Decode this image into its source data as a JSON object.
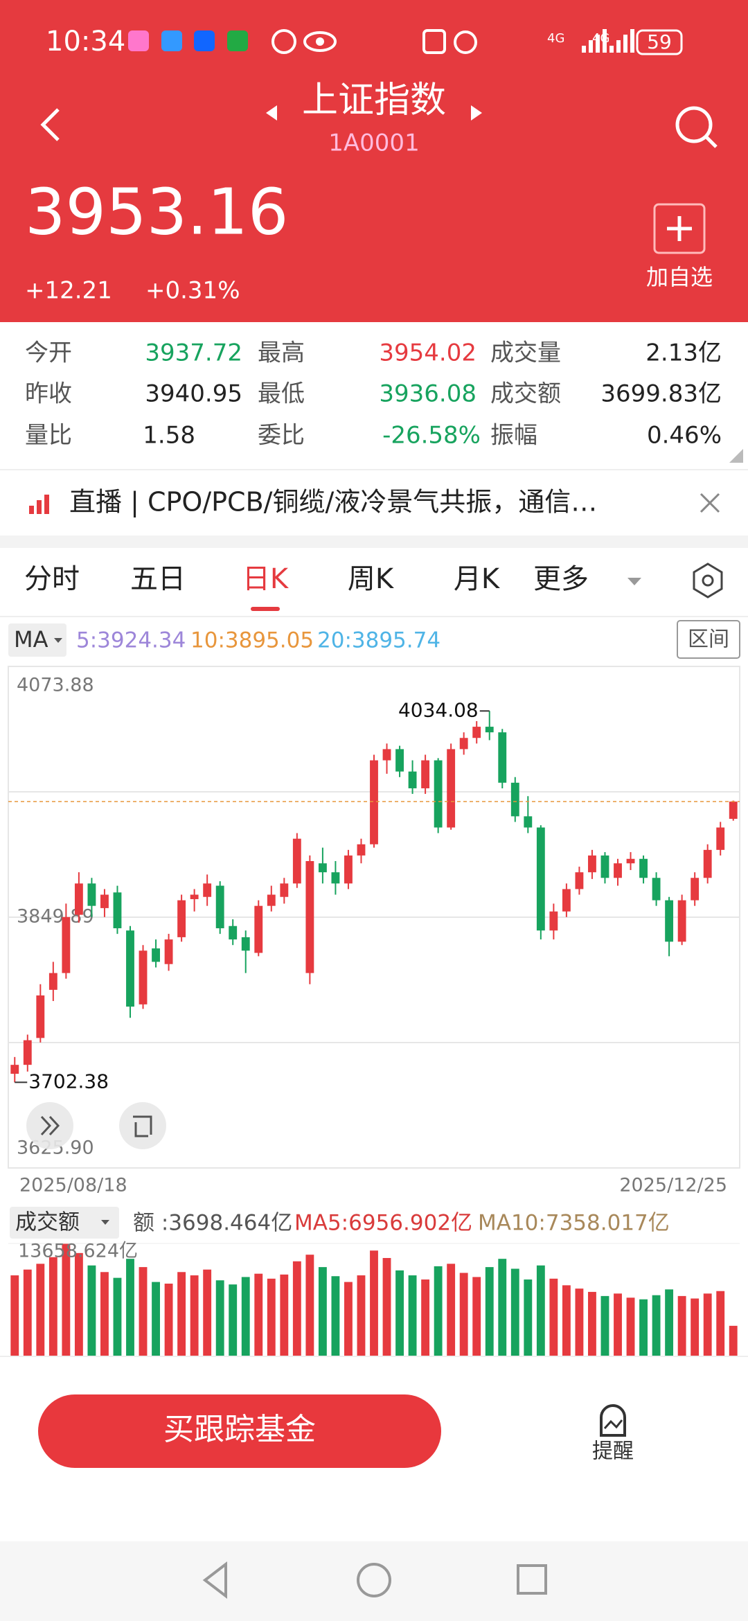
{
  "status_bar": {
    "time": "10:34",
    "battery": "59",
    "network": [
      "4G",
      "4G"
    ]
  },
  "header": {
    "title": "上证指数",
    "code": "1A0001",
    "price": "3953.16",
    "change": "+12.21",
    "change_pct": "+0.31%",
    "add_label": "加自选"
  },
  "stats": [
    [
      "今开",
      "3937.72",
      "最高",
      "3954.02",
      "成交量",
      "2.13亿"
    ],
    [
      "昨收",
      "3940.95",
      "最低",
      "3936.08",
      "成交额",
      "3699.83亿"
    ],
    [
      "量比",
      "1.58",
      "委比",
      "-26.58%",
      "振幅",
      "0.46%"
    ]
  ],
  "news": "直播 | CPO/PCB/铜缆/液冷景气共振，通信…",
  "tabs": [
    "分时",
    "五日",
    "日K",
    "周K",
    "月K",
    "更多"
  ],
  "chart": {
    "type": "candlestick",
    "indicator": "MA",
    "ma_labels": [
      "5:3924.34",
      "10:3895.05",
      "20:3895.74"
    ],
    "ma_colors": [
      "#9d86d9",
      "#e8963c",
      "#4fb4e6"
    ],
    "range_button": "区间",
    "ylim": [
      3625.9,
      4073.88
    ],
    "yticks": [
      {
        "value": 3625.9,
        "label": "3625.90"
      },
      3849.89,
      4073.88
    ],
    "start_date": "2025/08/18",
    "end_date": "2025/12/25",
    "up_color": "#e63a3f",
    "down_color": "#17a35e",
    "candles": [
      [
        3710,
        3725,
        3702.38,
        3718
      ],
      [
        3718,
        3745,
        3712,
        3740
      ],
      [
        3742,
        3790,
        3738,
        3780
      ],
      [
        3785,
        3810,
        3775,
        3800
      ],
      [
        3800,
        3862,
        3795,
        3850
      ],
      [
        3852,
        3890,
        3845,
        3880
      ],
      [
        3880,
        3885,
        3850,
        3860
      ],
      [
        3858,
        3875,
        3850,
        3870
      ],
      [
        3872,
        3878,
        3835,
        3840
      ],
      [
        3838,
        3842,
        3760,
        3770
      ],
      [
        3772,
        3825,
        3768,
        3820
      ],
      [
        3822,
        3830,
        3805,
        3810
      ],
      [
        3808,
        3835,
        3802,
        3830
      ],
      [
        3832,
        3870,
        3828,
        3865
      ],
      [
        3866,
        3875,
        3855,
        3870
      ],
      [
        3868,
        3888,
        3860,
        3880
      ],
      [
        3878,
        3882,
        3835,
        3840
      ],
      [
        3842,
        3848,
        3825,
        3830
      ],
      [
        3832,
        3838,
        3800,
        3820
      ],
      [
        3818,
        3865,
        3815,
        3860
      ],
      [
        3860,
        3878,
        3855,
        3870
      ],
      [
        3868,
        3885,
        3862,
        3880
      ],
      [
        3880,
        3925,
        3876,
        3920
      ],
      [
        3800,
        3905,
        3790,
        3900
      ],
      [
        3898,
        3912,
        3880,
        3890
      ],
      [
        3890,
        3900,
        3870,
        3880
      ],
      [
        3880,
        3910,
        3875,
        3905
      ],
      [
        3905,
        3920,
        3898,
        3915
      ],
      [
        3915,
        3995,
        3912,
        3990
      ],
      [
        3990,
        4005,
        3978,
        4000
      ],
      [
        4000,
        4003,
        3975,
        3980
      ],
      [
        3980,
        3990,
        3960,
        3965
      ],
      [
        3965,
        3995,
        3960,
        3990
      ],
      [
        3990,
        3992,
        3925,
        3930
      ],
      [
        3930,
        4005,
        3928,
        4000
      ],
      [
        4000,
        4015,
        3995,
        4010
      ],
      [
        4010,
        4025,
        4005,
        4020
      ],
      [
        4020,
        4034.08,
        4008,
        4015
      ],
      [
        4015,
        4018,
        3965,
        3970
      ],
      [
        3970,
        3975,
        3935,
        3940
      ],
      [
        3940,
        3958,
        3925,
        3930
      ],
      [
        3930,
        3932,
        3830,
        3838
      ],
      [
        3838,
        3862,
        3830,
        3855
      ],
      [
        3855,
        3880,
        3850,
        3875
      ],
      [
        3875,
        3895,
        3870,
        3890
      ],
      [
        3890,
        3910,
        3884,
        3905
      ],
      [
        3905,
        3908,
        3880,
        3885
      ],
      [
        3885,
        3902,
        3878,
        3898
      ],
      [
        3898,
        3908,
        3892,
        3902
      ],
      [
        3902,
        3905,
        3880,
        3885
      ],
      [
        3885,
        3890,
        3860,
        3865
      ],
      [
        3865,
        3868,
        3815,
        3828
      ],
      [
        3828,
        3870,
        3825,
        3865
      ],
      [
        3865,
        3890,
        3860,
        3885
      ],
      [
        3885,
        3915,
        3880,
        3910
      ],
      [
        3910,
        3935,
        3905,
        3930
      ],
      [
        3937.72,
        3954.02,
        3936.08,
        3953.16
      ]
    ]
  },
  "volume": {
    "selector": "成交额",
    "labels": [
      "额 :3698.464亿",
      "MA5:6956.902亿",
      "MA10:7358.017亿"
    ],
    "label_colors": [
      "#555555",
      "#d93b3b",
      "#a8885a"
    ],
    "ylim": [
      0,
      13658.624
    ],
    "max_tick": {
      "value": 13658.624,
      "label": "13658.624亿"
    },
    "values": [
      9800,
      10500,
      11200,
      12000,
      13658.624,
      12500,
      11000,
      10200,
      9500,
      11800,
      10800,
      9000,
      8800,
      10200,
      9800,
      10500,
      9200,
      8700,
      9600,
      10000,
      9400,
      9900,
      11500,
      12300,
      10800,
      9700,
      9000,
      9800,
      12800,
      11900,
      10400,
      9800,
      9300,
      10900,
      11200,
      10100,
      9600,
      10800,
      11800,
      10600,
      9300,
      11000,
      9400,
      8600,
      8200,
      7800,
      7300,
      7600,
      7100,
      6900,
      7400,
      8100,
      7300,
      7000,
      7600,
      7900,
      3698.464
    ]
  },
  "footer": {
    "buy_button": "买跟踪基金",
    "alert": "提醒"
  }
}
